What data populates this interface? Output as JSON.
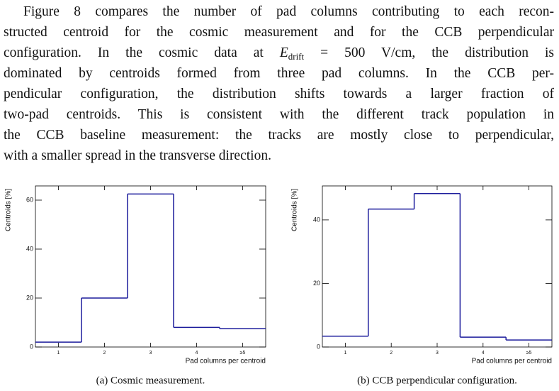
{
  "paragraph": {
    "lines": [
      "Figure 8 compares the number of pad columns contributing to each recon-",
      "structed centroid for the cosmic measurement and for the CCB perpendicular",
      {
        "before": "configuration. In the cosmic data at ",
        "var": "E",
        "sub": "drift",
        "after": " = 500 V/cm, the distribution is"
      },
      "dominated by centroids formed from three pad columns. In the CCB per-",
      "pendicular configuration, the distribution shifts towards a larger fraction of",
      "two-pad centroids. This is consistent with the different track population in",
      "the CCB baseline measurement: the tracks are mostly close to perpendicular,",
      "with a smaller spread in the transverse direction."
    ]
  },
  "chart_data": [
    {
      "type": "step",
      "caption": "(a) Cosmic measurement.",
      "xlabel": "Pad columns per centroid",
      "ylabel": "Centroids [%]",
      "categories": [
        "1",
        "2",
        "3",
        "4",
        "≥5"
      ],
      "values": [
        2,
        20,
        62.5,
        8,
        7.5
      ],
      "color": "#1c1c9c",
      "ylim": [
        0,
        65.8
      ],
      "yticks": [
        0,
        20,
        40,
        60
      ]
    },
    {
      "type": "step",
      "caption": "(b) CCB perpendicular configuration.",
      "xlabel": "Pad columns per centroid",
      "ylabel": "Centroids [%]",
      "categories": [
        "1",
        "2",
        "3",
        "4",
        "≥5"
      ],
      "values": [
        3.4,
        43.4,
        48.3,
        3.1,
        2.2
      ],
      "color": "#1c1c9c",
      "ylim": [
        0,
        50.7
      ],
      "yticks": [
        0,
        20,
        40
      ]
    }
  ]
}
